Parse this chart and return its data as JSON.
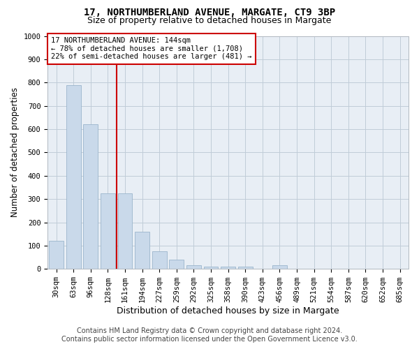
{
  "title": "17, NORTHUMBERLAND AVENUE, MARGATE, CT9 3BP",
  "subtitle": "Size of property relative to detached houses in Margate",
  "xlabel": "Distribution of detached houses by size in Margate",
  "ylabel": "Number of detached properties",
  "categories": [
    "30sqm",
    "63sqm",
    "96sqm",
    "128sqm",
    "161sqm",
    "194sqm",
    "227sqm",
    "259sqm",
    "292sqm",
    "325sqm",
    "358sqm",
    "390sqm",
    "423sqm",
    "456sqm",
    "489sqm",
    "521sqm",
    "554sqm",
    "587sqm",
    "620sqm",
    "652sqm",
    "685sqm"
  ],
  "values": [
    120,
    790,
    620,
    325,
    325,
    160,
    75,
    40,
    15,
    10,
    10,
    10,
    0,
    15,
    0,
    0,
    0,
    0,
    0,
    0,
    0
  ],
  "bar_color": "#c9d9ea",
  "bar_edge_color": "#9ab5cc",
  "red_line_x": 3.5,
  "annotation_text": "17 NORTHUMBERLAND AVENUE: 144sqm\n← 78% of detached houses are smaller (1,708)\n22% of semi-detached houses are larger (481) →",
  "annotation_box_facecolor": "#ffffff",
  "annotation_border_color": "#cc0000",
  "red_line_color": "#cc0000",
  "ylim": [
    0,
    1000
  ],
  "yticks": [
    0,
    100,
    200,
    300,
    400,
    500,
    600,
    700,
    800,
    900,
    1000
  ],
  "footer_line1": "Contains HM Land Registry data © Crown copyright and database right 2024.",
  "footer_line2": "Contains public sector information licensed under the Open Government Licence v3.0.",
  "title_fontsize": 10,
  "subtitle_fontsize": 9,
  "xlabel_fontsize": 9,
  "ylabel_fontsize": 8.5,
  "tick_fontsize": 7.5,
  "annotation_fontsize": 7.5,
  "footer_fontsize": 7,
  "background_color": "#ffffff",
  "plot_bg_color": "#e8eef5",
  "grid_color": "#c0ccd8"
}
